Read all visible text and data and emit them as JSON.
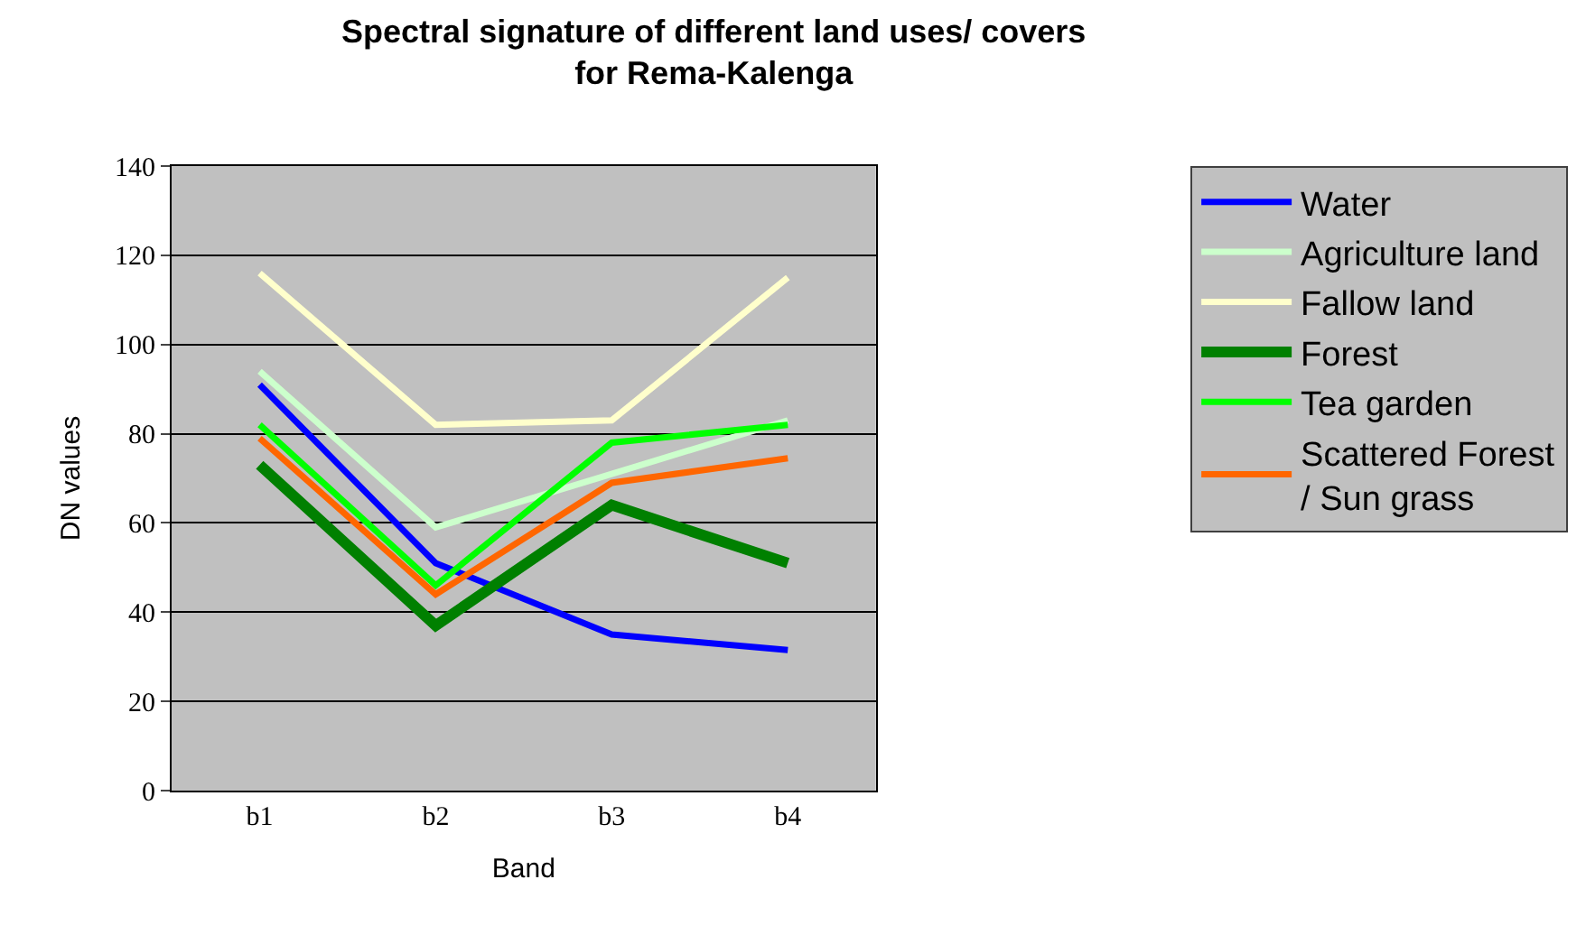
{
  "chart_data": {
    "type": "line",
    "title": "Spectral signature of different land uses/ covers for Rema-Kalenga",
    "xlabel": "Band",
    "ylabel": "DN values",
    "categories": [
      "b1",
      "b2",
      "b3",
      "b4"
    ],
    "series": [
      {
        "name": "Water",
        "color": "#0000ff",
        "values": [
          91,
          51,
          35,
          31.5
        ]
      },
      {
        "name": "Agriculture land",
        "color": "#ccffcc",
        "values": [
          94,
          59,
          71,
          83
        ]
      },
      {
        "name": "Fallow land",
        "color": "#ffffcc",
        "values": [
          116,
          82,
          83,
          115
        ]
      },
      {
        "name": "Forest",
        "color": "#008000",
        "values": [
          73,
          37,
          64,
          51
        ]
      },
      {
        "name": "Tea garden",
        "color": "#00ff00",
        "values": [
          82,
          46,
          78,
          82
        ]
      },
      {
        "name": "Scattered Forest / Sun grass",
        "color": "#ff6600",
        "values": [
          79,
          44,
          69,
          74.5
        ]
      }
    ],
    "ylim": [
      0,
      140
    ],
    "yticks": [
      0,
      20,
      40,
      60,
      80,
      100,
      120,
      140
    ],
    "grid": "y",
    "legend": "right",
    "marker": "none",
    "line_style": "solid"
  }
}
